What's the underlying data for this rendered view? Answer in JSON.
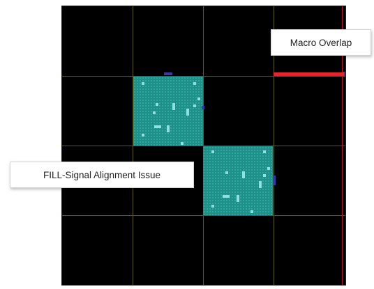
{
  "annotations": {
    "macro_overlap": "Macro Overlap",
    "fill_signal": "FILL-Signal Alignment Issue"
  },
  "colors": {
    "canvas_background": "#000000",
    "grid": "#5a5a1e",
    "macro_fill": "#1f8f88",
    "speck": "#8fe0e4",
    "overlap_marker": "#e0282a",
    "pin": "#3a3aa0"
  }
}
